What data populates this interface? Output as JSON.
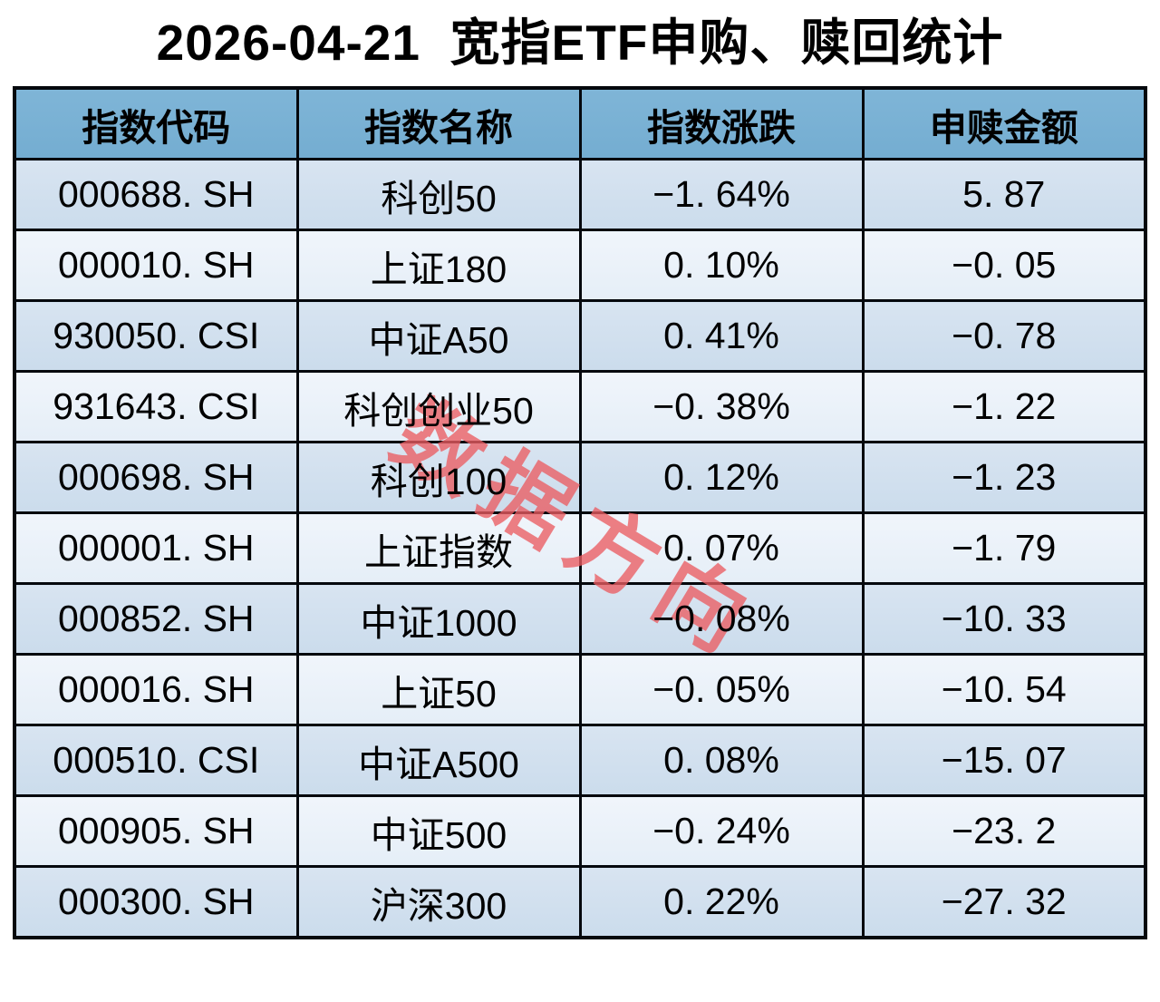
{
  "title": "2026-04-21  宽指ETF申购、赎回统计",
  "watermark": "数据方向",
  "colors": {
    "page_bg": "#FFFFFF",
    "header_bg": "#79B1D4",
    "row_odd_bg": "#CFDEED",
    "row_even_bg": "#EAF1F9",
    "grid_border": "#05080D",
    "watermark_red": "#EB5C61",
    "text": "#000000"
  },
  "table": {
    "columns": [
      "指数代码",
      "指数名称",
      "指数涨跌",
      "申赎金额"
    ],
    "rows": [
      [
        "000688. SH",
        "科创50",
        "−1. 64%",
        "5. 87"
      ],
      [
        "000010. SH",
        "上证180",
        "0. 10%",
        "−0. 05"
      ],
      [
        "930050. CSI",
        "中证A50",
        "0. 41%",
        "−0. 78"
      ],
      [
        "931643. CSI",
        "科创创业50",
        "−0. 38%",
        "−1. 22"
      ],
      [
        "000698. SH",
        "科创100",
        "0. 12%",
        "−1. 23"
      ],
      [
        "000001. SH",
        "上证指数",
        "0. 07%",
        "−1. 79"
      ],
      [
        "000852. SH",
        "中证1000",
        "−0. 08%",
        "−10. 33"
      ],
      [
        "000016. SH",
        "上证50",
        "−0. 05%",
        "−10. 54"
      ],
      [
        "000510. CSI",
        "中证A500",
        "0. 08%",
        "−15. 07"
      ],
      [
        "000905. SH",
        "中证500",
        "−0. 24%",
        "−23. 2"
      ],
      [
        "000300. SH",
        "沪深300",
        "0. 22%",
        "−27. 32"
      ]
    ]
  },
  "chart_data": {
    "type": "table",
    "title": "2026-04-21 宽指ETF申购、赎回统计",
    "columns": [
      "指数代码",
      "指数名称",
      "指数涨跌",
      "申赎金额"
    ],
    "rows": [
      {
        "code": "000688.SH",
        "name": "科创50",
        "change_pct": -1.64,
        "amount": 5.87
      },
      {
        "code": "000010.SH",
        "name": "上证180",
        "change_pct": 0.1,
        "amount": -0.05
      },
      {
        "code": "930050.CSI",
        "name": "中证A50",
        "change_pct": 0.41,
        "amount": -0.78
      },
      {
        "code": "931643.CSI",
        "name": "科创创业50",
        "change_pct": -0.38,
        "amount": -1.22
      },
      {
        "code": "000698.SH",
        "name": "科创100",
        "change_pct": 0.12,
        "amount": -1.23
      },
      {
        "code": "000001.SH",
        "name": "上证指数",
        "change_pct": 0.07,
        "amount": -1.79
      },
      {
        "code": "000852.SH",
        "name": "中证1000",
        "change_pct": -0.08,
        "amount": -10.33
      },
      {
        "code": "000016.SH",
        "name": "上证50",
        "change_pct": -0.05,
        "amount": -10.54
      },
      {
        "code": "000510.CSI",
        "name": "中证A500",
        "change_pct": 0.08,
        "amount": -15.07
      },
      {
        "code": "000905.SH",
        "name": "中证500",
        "change_pct": -0.24,
        "amount": -23.2
      },
      {
        "code": "000300.SH",
        "name": "沪深300",
        "change_pct": 0.22,
        "amount": -27.32
      }
    ]
  }
}
